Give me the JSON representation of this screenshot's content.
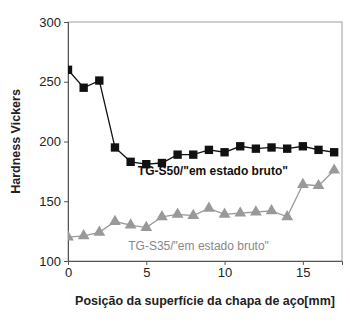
{
  "chart_data": {
    "type": "line",
    "x_label": "Posição da superfície da chapa de aço[mm]",
    "y_label": "Hardness Vickers",
    "x": [
      0,
      1,
      2,
      3,
      4,
      5,
      6,
      7,
      8,
      9,
      10,
      11,
      12,
      13,
      14,
      15,
      16,
      17
    ],
    "series": [
      {
        "name": "TG-S50/\"em estado bruto\"",
        "color": "#111111",
        "marker": "square",
        "line_style": "solid",
        "values": [
          260,
          245,
          251,
          195,
          183,
          181,
          182,
          189,
          189,
          193,
          191,
          196,
          194,
          195,
          194,
          196,
          193,
          191
        ]
      },
      {
        "name": "TG-S35/\"em estado bruto\"",
        "color": "#999999",
        "marker": "triangle",
        "line_style": "solid",
        "values": [
          120,
          121,
          124,
          133,
          130,
          128,
          137,
          139,
          138,
          144,
          139,
          140,
          141,
          142,
          137,
          164,
          163,
          176
        ]
      }
    ],
    "xlim": [
      0,
      17.5
    ],
    "xticks": [
      0,
      5,
      10,
      15
    ],
    "ylim": [
      100,
      300
    ],
    "yticks": [
      100,
      150,
      200,
      250,
      300
    ],
    "grid": false
  }
}
